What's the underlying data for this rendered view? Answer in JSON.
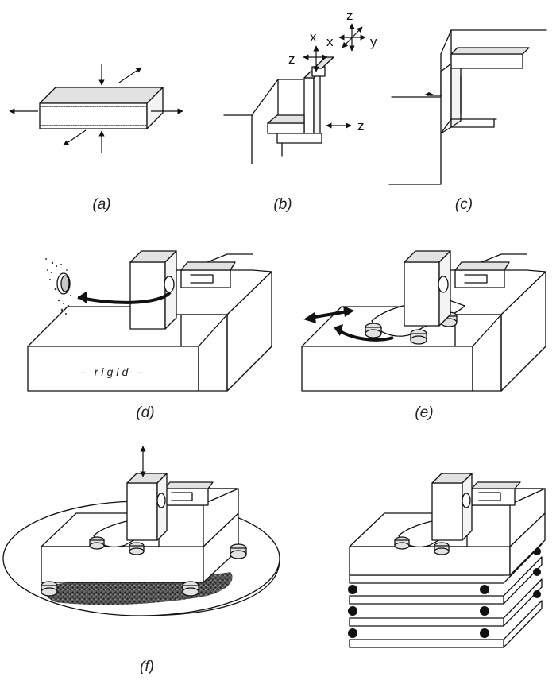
{
  "panels": {
    "a": {
      "caption": "(a)"
    },
    "b": {
      "caption": "(b)",
      "axis_labels": {
        "x_top": "x",
        "z_left": "z",
        "z_top": "z",
        "x_compass": "x",
        "y_compass": "y",
        "z_right": "z"
      }
    },
    "c": {
      "caption": "(c)"
    },
    "d": {
      "caption": "(d)",
      "base_label": "- rigid -"
    },
    "e": {
      "caption": "(e)"
    },
    "f": {
      "caption": "(f)"
    }
  },
  "colors": {
    "line": "#111111",
    "shade_light": "#f4f4f4",
    "shade_mid": "#e2e2e2",
    "shade_dark": "#c8c8c8",
    "ground": "#3a3a3a"
  }
}
